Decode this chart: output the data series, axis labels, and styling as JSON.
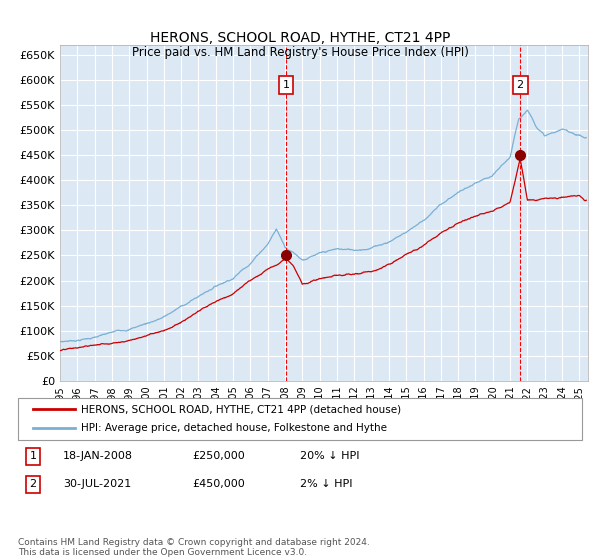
{
  "title": "HERONS, SCHOOL ROAD, HYTHE, CT21 4PP",
  "subtitle": "Price paid vs. HM Land Registry's House Price Index (HPI)",
  "ylabel_ticks": [
    "£0",
    "£50K",
    "£100K",
    "£150K",
    "£200K",
    "£250K",
    "£300K",
    "£350K",
    "£400K",
    "£450K",
    "£500K",
    "£550K",
    "£600K",
    "£650K"
  ],
  "ytick_values": [
    0,
    50000,
    100000,
    150000,
    200000,
    250000,
    300000,
    350000,
    400000,
    450000,
    500000,
    550000,
    600000,
    650000
  ],
  "ylim": [
    0,
    670000
  ],
  "xlim_start": 1995.0,
  "xlim_end": 2025.5,
  "xtick_years": [
    1995,
    1996,
    1997,
    1998,
    1999,
    2000,
    2001,
    2002,
    2003,
    2004,
    2005,
    2006,
    2007,
    2008,
    2009,
    2010,
    2011,
    2012,
    2013,
    2014,
    2015,
    2016,
    2017,
    2018,
    2019,
    2020,
    2021,
    2022,
    2023,
    2024,
    2025
  ],
  "bg_color": "#dce9f5",
  "grid_color": "#ffffff",
  "hpi_color": "#7ab0d4",
  "price_color": "#cc0000",
  "marker1_date": 2008.05,
  "marker1_price": 250000,
  "marker1_label": "18-JAN-2008",
  "marker1_amount": "£250,000",
  "marker1_hpi": "20% ↓ HPI",
  "marker2_date": 2021.58,
  "marker2_price": 450000,
  "marker2_label": "30-JUL-2021",
  "marker2_amount": "£450,000",
  "marker2_hpi": "2% ↓ HPI",
  "legend_line1": "HERONS, SCHOOL ROAD, HYTHE, CT21 4PP (detached house)",
  "legend_line2": "HPI: Average price, detached house, Folkestone and Hythe",
  "footnote": "Contains HM Land Registry data © Crown copyright and database right 2024.\nThis data is licensed under the Open Government Licence v3.0."
}
